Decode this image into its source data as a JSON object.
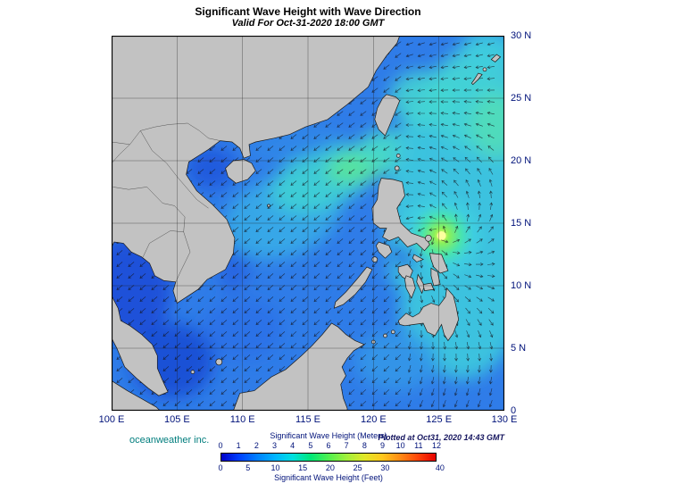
{
  "header": {
    "title": "Significant Wave Height with Wave Direction",
    "valid_time": "Valid For Oct-31-2020 18:00 GMT"
  },
  "axes": {
    "x_ticks": [
      "100 E",
      "105 E",
      "110 E",
      "115 E",
      "120 E",
      "125 E",
      "130 E"
    ],
    "y_ticks": [
      "30 N",
      "25 N",
      "20 N",
      "15 N",
      "10 N",
      "5 N",
      "0"
    ]
  },
  "footer": {
    "credit": "oceanweather inc.",
    "plotted_at": "Plotted at Oct31, 2020 14:43 GMT"
  },
  "colorbar": {
    "meters_label": "Significant Wave Height (Meters)",
    "feet_label": "Significant Wave Height (Feet)",
    "meters_ticks": [
      0,
      1,
      2,
      3,
      4,
      5,
      6,
      7,
      8,
      9,
      10,
      11,
      12
    ],
    "feet_ticks": [
      0,
      5,
      10,
      15,
      20,
      25,
      30,
      40
    ],
    "colors": [
      "#0000c8",
      "#0040ff",
      "#0080ff",
      "#00b4ff",
      "#00e0e0",
      "#00e878",
      "#50f050",
      "#a0f03c",
      "#e0e828",
      "#ffc81e",
      "#ff8c14",
      "#ff460a",
      "#e60000"
    ]
  },
  "chart_data": {
    "type": "heatmap",
    "title": "Significant Wave Height with Wave Direction",
    "subtitle": "Valid For Oct-31-2020 18:00 GMT",
    "field": "significant wave height (color fill) with wave-direction arrows (vector overlay)",
    "region": {
      "lon_min": "100 E",
      "lon_max": "130 E",
      "lat_min": "0",
      "lat_max": "30 N"
    },
    "x_ticks": [
      "100 E",
      "105 E",
      "110 E",
      "115 E",
      "120 E",
      "125 E",
      "130 E"
    ],
    "y_ticks": [
      "30 N",
      "25 N",
      "20 N",
      "15 N",
      "10 N",
      "5 N",
      "0"
    ],
    "grid": true,
    "grid_interval_deg": 5,
    "colorbar_range_m": [
      0,
      12
    ],
    "colorbar_range_ft": [
      0,
      40
    ],
    "legend_position": "bottom-center",
    "features": [
      {
        "name": "typhoon wave maximum east of the Philippines",
        "approx_position": "14 N 125 E",
        "peak_height_m": 7,
        "pattern": "bright green-yellow core with cyclonic arrows spiraling outward"
      },
      {
        "name": "northeast-monsoon swell across the South China Sea",
        "height_m": "1.5-3.5",
        "direction": "arrows toward the southwest"
      },
      {
        "name": "cyan Pacific swell field east of 122 E",
        "height_m": "2-3"
      },
      {
        "name": "green swell band northwest of Luzon Strait",
        "approx_position": "19-20 N 116-121 E",
        "height_m": "3-4"
      },
      {
        "name": "calm coastal waters, Gulf of Thailand and Gulf of Tonkin",
        "height_m": "0-1"
      },
      {
        "name": "land masses shaded gray",
        "color": "#c2c2c2"
      }
    ]
  }
}
